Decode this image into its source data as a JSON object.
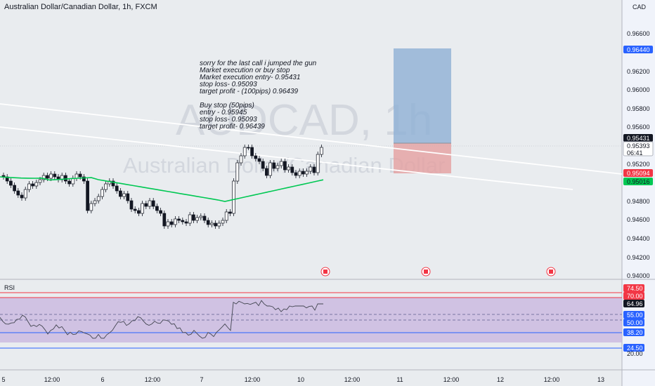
{
  "header": {
    "symbol_title": "Australian Dollar/Canadian Dollar, 1h, FXCM",
    "currency": "CAD"
  },
  "watermark": {
    "symbol": "AUDCAD, 1h",
    "name": "Australian Dollar/Canadian Dollar"
  },
  "note": {
    "lines": [
      "sorry for the last call i jumped the gun",
      "Market execution or buy stop",
      "Market execution entry- 0.95431",
      "stop loss- 0.95093",
      "target profit - (100pips) 0.96439",
      "",
      "Buy stop (50pips)",
      "entry - 0.95945",
      "stop loss- 0.95093",
      "target profit- 0.96439"
    ]
  },
  "price_axis": {
    "ticks": [
      "0.96600",
      "0.96200",
      "0.96000",
      "0.95800",
      "0.95600",
      "0.95200",
      "0.94800",
      "0.94600",
      "0.94400",
      "0.94200",
      "0.94000"
    ],
    "badges": [
      {
        "text": "0.96440",
        "bg": "#2962ff",
        "fg": "#ffffff"
      },
      {
        "text": "0.95431",
        "bg": "#131722",
        "fg": "#ffffff"
      },
      {
        "text": "0.95393",
        "bg": "#ffffff",
        "fg": "#131722",
        "sub": "06:41"
      },
      {
        "text": "0.95094",
        "bg": "#f23645",
        "fg": "#ffffff"
      },
      {
        "text": "0.95016",
        "bg": "#00c853",
        "fg": "#131722"
      }
    ]
  },
  "rsi": {
    "label": "RSI",
    "badges": [
      {
        "text": "74.50",
        "bg": "#f23645",
        "fg": "#ffffff"
      },
      {
        "text": "70.00",
        "bg": "#f23645",
        "fg": "#ffffff"
      },
      {
        "text": "64.96",
        "bg": "#131722",
        "fg": "#ffffff"
      },
      {
        "text": "55.00",
        "bg": "#2962ff",
        "fg": "#ffffff"
      },
      {
        "text": "50.00",
        "bg": "#2962ff",
        "fg": "#ffffff"
      },
      {
        "text": "38.20",
        "bg": "#2962ff",
        "fg": "#ffffff"
      },
      {
        "text": "24.50",
        "bg": "#2962ff",
        "fg": "#ffffff"
      }
    ],
    "tick": "20.00"
  },
  "time_axis": {
    "ticks": [
      "5",
      "12:00",
      "6",
      "12:00",
      "7",
      "12:00",
      "10",
      "12:00",
      "11",
      "12:00",
      "12",
      "12:00",
      "13"
    ]
  },
  "colors": {
    "up": "#ffffff",
    "down": "#131722",
    "ma": "#00c853",
    "target": "#8fb0d4",
    "stop": "#e5a0a0",
    "rsi_band": "#c9b8e0"
  }
}
